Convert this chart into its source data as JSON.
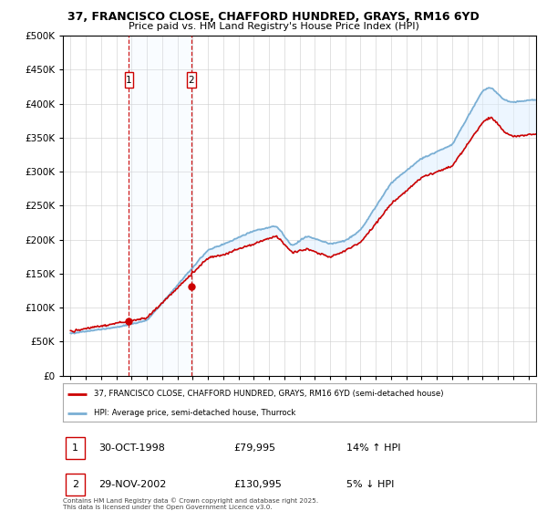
{
  "title": "37, FRANCISCO CLOSE, CHAFFORD HUNDRED, GRAYS, RM16 6YD",
  "subtitle": "Price paid vs. HM Land Registry's House Price Index (HPI)",
  "legend_line1": "37, FRANCISCO CLOSE, CHAFFORD HUNDRED, GRAYS, RM16 6YD (semi-detached house)",
  "legend_line2": "HPI: Average price, semi-detached house, Thurrock",
  "footer": "Contains HM Land Registry data © Crown copyright and database right 2025.\nThis data is licensed under the Open Government Licence v3.0.",
  "sale1_date": "30-OCT-1998",
  "sale1_price": "£79,995",
  "sale1_hpi": "14% ↑ HPI",
  "sale2_date": "29-NOV-2002",
  "sale2_price": "£130,995",
  "sale2_hpi": "5% ↓ HPI",
  "sale1_year": 1998.83,
  "sale1_value": 79995,
  "sale2_year": 2002.92,
  "sale2_value": 130995,
  "red_color": "#cc0000",
  "blue_color": "#7aafd4",
  "shade_color": "#ddeeff",
  "grid_color": "#cccccc",
  "background_color": "#ffffff",
  "ylim": [
    0,
    500000
  ],
  "xlim_start": 1994.5,
  "xlim_end": 2025.5
}
